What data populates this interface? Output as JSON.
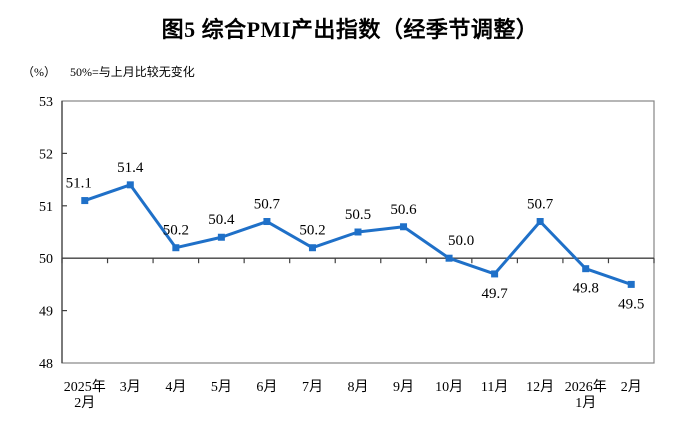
{
  "title": "图5 综合PMI产出指数（经季节调整）",
  "subtitle": {
    "unit": "（%）",
    "note": "50%=与上月比较无变化"
  },
  "chart_data": {
    "type": "line",
    "title": "图5 综合PMI产出指数（经季节调整）",
    "unit_label": "（%）",
    "note": "50%=与上月比较无变化",
    "categories": [
      "2025年\n2月",
      "3月",
      "4月",
      "5月",
      "6月",
      "7月",
      "8月",
      "9月",
      "10月",
      "11月",
      "12月",
      "2026年\n1月",
      "2月"
    ],
    "series": [
      {
        "name": "综合PMI产出指数",
        "values": [
          51.1,
          51.4,
          50.2,
          50.4,
          50.7,
          50.2,
          50.5,
          50.6,
          50.0,
          49.7,
          50.7,
          49.8,
          49.5
        ]
      }
    ],
    "data_labels": [
      "51.1",
      "51.4",
      "50.2",
      "50.4",
      "50.7",
      "50.2",
      "50.5",
      "50.6",
      "50.0",
      "49.7",
      "50.7",
      "49.8",
      "49.5"
    ],
    "label_position": [
      "above",
      "above",
      "above",
      "above",
      "above",
      "above",
      "above",
      "above",
      "above",
      "below",
      "above",
      "below",
      "below"
    ],
    "label_dx": [
      -6,
      0,
      0,
      0,
      0,
      0,
      0,
      0,
      12,
      0,
      0,
      0,
      0
    ],
    "ylim": [
      48,
      53
    ],
    "ytick_step": 1,
    "yticks": [
      48,
      49,
      50,
      51,
      52,
      53
    ],
    "reference_line": 50,
    "xlabel": "",
    "ylabel": "",
    "grid": "off",
    "legend": "none",
    "line_color": "#1F70C8",
    "marker": "square",
    "marker_color": "#1F70C8",
    "axis_color": "#404040",
    "border_color": "#858585",
    "label_color": "#000000"
  }
}
